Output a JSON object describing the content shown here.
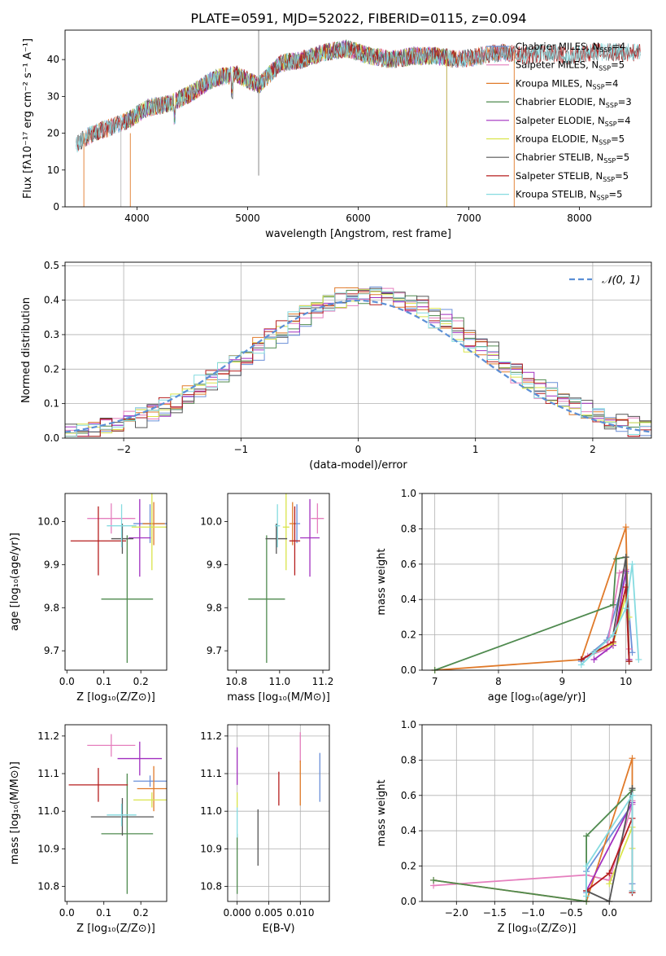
{
  "figure": {
    "title": "PLATE=0591, MJD=52022, FIBERID=0115, z=0.094"
  },
  "chart_data": [
    {
      "id": "spectrum",
      "type": "line",
      "xlabel": "wavelength [Angstrom, rest frame]",
      "ylabel": "Flux [fλ10⁻¹⁷ erg cm⁻² s⁻¹ A⁻¹]",
      "xlim": [
        3350,
        8650
      ],
      "ylim": [
        0,
        48
      ],
      "xticks": [
        4000,
        5000,
        6000,
        7000,
        8000
      ],
      "yticks": [
        0,
        10,
        20,
        30,
        40
      ],
      "grid": false,
      "legend": "top-right",
      "continuum": {
        "x": [
          3450,
          3600,
          3800,
          3950,
          4100,
          4300,
          4500,
          4700,
          4900,
          5100,
          5300,
          5500,
          5700,
          5900,
          6100,
          6300,
          6500,
          6700,
          6900,
          7100,
          7300,
          7500,
          7700,
          7900,
          8100,
          8300,
          8550
        ],
        "y": [
          17,
          20,
          22,
          24,
          27,
          28,
          31,
          35,
          36,
          33,
          39,
          40,
          42,
          43,
          41,
          40,
          41,
          41,
          40,
          41,
          42,
          41,
          42,
          41,
          42,
          42,
          42
        ]
      },
      "series": [
        {
          "name": "Chabrier MILES, Nₛₛₚ=4",
          "label": "Chabrier MILES, N",
          "sub": "SSP",
          "suffix": "=4",
          "color": "#6a8fd8",
          "xrange": [
            3540,
            7400
          ]
        },
        {
          "name": "Salpeter MILES, Nₛₛₚ=5",
          "label": "Salpeter MILES, N",
          "sub": "SSP",
          "suffix": "=5",
          "color": "#e57fbe",
          "xrange": [
            3540,
            7400
          ]
        },
        {
          "name": "Kroupa MILES, Nₛₛₚ=4",
          "label": "Kroupa MILES, N",
          "sub": "SSP",
          "suffix": "=4",
          "color": "#e07a2a",
          "xrange": [
            3540,
            7400
          ]
        },
        {
          "name": "Chabrier ELODIE, Nₛₛₚ=3",
          "label": "Chabrier ELODIE, N",
          "sub": "SSP",
          "suffix": "=3",
          "color": "#4f8a4f",
          "xrange": [
            3900,
            6800
          ]
        },
        {
          "name": "Salpeter ELODIE, Nₛₛₚ=4",
          "label": "Salpeter ELODIE, N",
          "sub": "SSP",
          "suffix": "=4",
          "color": "#a12fbf",
          "xrange": [
            3900,
            6800
          ]
        },
        {
          "name": "Kroupa ELODIE, Nₛₛₚ=5",
          "label": "Kroupa ELODIE, N",
          "sub": "SSP",
          "suffix": "=5",
          "color": "#d9e44a",
          "xrange": [
            3900,
            6800
          ]
        },
        {
          "name": "Chabrier STELIB, Nₛₛₚ=5",
          "label": "Chabrier STELIB, N",
          "sub": "SSP",
          "suffix": "=5",
          "color": "#555555",
          "xrange": [
            3450,
            8550
          ]
        },
        {
          "name": "Salpeter STELIB, Nₛₛₚ=5",
          "label": "Salpeter STELIB, N",
          "sub": "SSP",
          "suffix": "=5",
          "color": "#b51d1d",
          "xrange": [
            3450,
            8550
          ]
        },
        {
          "name": "Kroupa STELIB, Nₛₛₚ=5",
          "label": "Kroupa STELIB, N",
          "sub": "SSP",
          "suffix": "=5",
          "color": "#86dbe0",
          "xrange": [
            3450,
            8550
          ]
        }
      ]
    },
    {
      "id": "residuals",
      "type": "histogram",
      "xlabel": "(data-model)/error",
      "ylabel": "Normed distribution",
      "xlim": [
        -2.5,
        2.5
      ],
      "ylim": [
        0,
        0.51
      ],
      "xticks": [
        -2,
        -1,
        0,
        1,
        2
      ],
      "yticks": [
        0.0,
        0.1,
        0.2,
        0.3,
        0.4,
        0.5
      ],
      "grid": true,
      "legend": "top-right",
      "reference_label": "𝒩(0, 1)",
      "reference_color": "#5b8fd6"
    },
    {
      "id": "age_vs_Z",
      "type": "scatter",
      "xlabel": "Z [log₁₀(Z/Z⊙)]",
      "ylabel": "age  [log₁₀(age/yr)]",
      "xlim": [
        -0.005,
        0.27
      ],
      "ylim": [
        9.655,
        10.065
      ],
      "xticks": [
        0.0,
        0.1,
        0.2
      ],
      "yticks": [
        9.7,
        9.8,
        9.9,
        10.0
      ],
      "grid": false,
      "points": [
        {
          "x": 0.225,
          "y": 9.995,
          "xerr": 0.045,
          "yerr": 0.045,
          "color": "#6a8fd8"
        },
        {
          "x": 0.12,
          "y": 10.007,
          "xerr": 0.065,
          "yerr": 0.035,
          "color": "#e57fbe"
        },
        {
          "x": 0.235,
          "y": 9.995,
          "xerr": 0.03,
          "yerr": 0.05,
          "color": "#e07a2a"
        },
        {
          "x": 0.163,
          "y": 9.82,
          "xerr": 0.07,
          "yerr": 0.148,
          "color": "#4f8a4f"
        },
        {
          "x": 0.197,
          "y": 9.962,
          "xerr": 0.03,
          "yerr": 0.09,
          "color": "#a12fbf"
        },
        {
          "x": 0.23,
          "y": 9.987,
          "xerr": 0.055,
          "yerr": 0.1,
          "color": "#d9e44a"
        },
        {
          "x": 0.15,
          "y": 9.96,
          "xerr": 0.03,
          "yerr": 0.035,
          "color": "#555555"
        },
        {
          "x": 0.085,
          "y": 9.955,
          "xerr": 0.075,
          "yerr": 0.08,
          "color": "#b51d1d"
        },
        {
          "x": 0.148,
          "y": 9.99,
          "xerr": 0.04,
          "yerr": 0.05,
          "color": "#86dbe0"
        }
      ]
    },
    {
      "id": "age_vs_mass",
      "type": "scatter",
      "xlabel": "mass [log₁₀(M/M⊙)]",
      "ylabel": "",
      "xlim": [
        10.76,
        11.23
      ],
      "ylim": [
        9.655,
        10.065
      ],
      "xticks": [
        10.8,
        11.0,
        11.2
      ],
      "yticks": [
        9.7,
        9.8,
        9.9,
        10.0
      ],
      "grid": false,
      "points": [
        {
          "x": 11.08,
          "y": 9.995,
          "xerr": 0.015,
          "yerr": 0.045,
          "color": "#6a8fd8"
        },
        {
          "x": 11.175,
          "y": 10.007,
          "xerr": 0.03,
          "yerr": 0.035,
          "color": "#e57fbe"
        },
        {
          "x": 11.06,
          "y": 9.995,
          "xerr": 0.015,
          "yerr": 0.05,
          "color": "#e07a2a"
        },
        {
          "x": 10.94,
          "y": 9.82,
          "xerr": 0.085,
          "yerr": 0.148,
          "color": "#4f8a4f"
        },
        {
          "x": 11.14,
          "y": 9.962,
          "xerr": 0.045,
          "yerr": 0.09,
          "color": "#a12fbf"
        },
        {
          "x": 11.03,
          "y": 9.987,
          "xerr": 0.015,
          "yerr": 0.1,
          "color": "#d9e44a"
        },
        {
          "x": 10.985,
          "y": 9.96,
          "xerr": 0.05,
          "yerr": 0.035,
          "color": "#555555"
        },
        {
          "x": 11.07,
          "y": 9.955,
          "xerr": 0.025,
          "yerr": 0.08,
          "color": "#b51d1d"
        },
        {
          "x": 10.99,
          "y": 9.99,
          "xerr": 0.012,
          "yerr": 0.05,
          "color": "#86dbe0"
        }
      ]
    },
    {
      "id": "mass_weight_vs_age",
      "type": "line",
      "xlabel": "age  [log₁₀(age/yr)]",
      "ylabel": "mass weight",
      "xlim": [
        6.8,
        10.4
      ],
      "ylim": [
        0,
        1.0
      ],
      "xticks": [
        7,
        8,
        9,
        10
      ],
      "yticks": [
        0.0,
        0.2,
        0.4,
        0.6,
        0.8,
        1.0
      ],
      "grid": true,
      "series": [
        {
          "color": "#6a8fd8",
          "x": [
            9.3,
            9.7,
            10.0,
            10.1
          ],
          "y": [
            0.05,
            0.17,
            0.55,
            0.1
          ]
        },
        {
          "color": "#e57fbe",
          "x": [
            9.4,
            9.7,
            9.9,
            10.0,
            10.05
          ],
          "y": [
            0.08,
            0.12,
            0.55,
            0.57,
            0.12
          ]
        },
        {
          "color": "#e07a2a",
          "x": [
            7.0,
            9.3,
            10.0,
            10.05
          ],
          "y": [
            0.0,
            0.06,
            0.81,
            0.06
          ]
        },
        {
          "color": "#4f8a4f",
          "x": [
            7.0,
            9.8,
            9.85,
            10.0,
            10.05
          ],
          "y": [
            0.0,
            0.37,
            0.63,
            0.64,
            0.05
          ]
        },
        {
          "color": "#a12fbf",
          "x": [
            9.5,
            9.8,
            10.0,
            10.05
          ],
          "y": [
            0.06,
            0.14,
            0.56,
            0.06
          ]
        },
        {
          "color": "#d9e44a",
          "x": [
            9.5,
            9.8,
            10.0,
            10.05
          ],
          "y": [
            0.1,
            0.15,
            0.42,
            0.3
          ]
        },
        {
          "color": "#555555",
          "x": [
            9.3,
            9.5,
            9.8,
            10.0,
            10.05
          ],
          "y": [
            0.06,
            0.1,
            0.2,
            0.64,
            0.05
          ]
        },
        {
          "color": "#b51d1d",
          "x": [
            9.3,
            9.8,
            10.0,
            10.05
          ],
          "y": [
            0.06,
            0.16,
            0.47,
            0.05
          ]
        },
        {
          "color": "#86dbe0",
          "x": [
            9.3,
            9.5,
            9.8,
            10.0,
            10.1,
            10.2
          ],
          "y": [
            0.03,
            0.1,
            0.2,
            0.35,
            0.6,
            0.06
          ]
        }
      ]
    },
    {
      "id": "mass_vs_Z",
      "type": "scatter",
      "xlabel": "Z [log₁₀(Z/Z⊙)]",
      "ylabel": "mass [log₁₀(M/M⊙)]",
      "xlim": [
        -0.005,
        0.27
      ],
      "ylim": [
        10.76,
        11.23
      ],
      "xticks": [
        0.0,
        0.1,
        0.2
      ],
      "yticks": [
        10.8,
        10.9,
        11.0,
        11.1,
        11.2
      ],
      "grid": false,
      "points": [
        {
          "x": 0.225,
          "y": 11.08,
          "xerr": 0.045,
          "yerr": 0.015,
          "color": "#6a8fd8"
        },
        {
          "x": 0.12,
          "y": 11.175,
          "xerr": 0.065,
          "yerr": 0.03,
          "color": "#e57fbe"
        },
        {
          "x": 0.235,
          "y": 11.06,
          "xerr": 0.045,
          "yerr": 0.06,
          "color": "#e07a2a"
        },
        {
          "x": 0.163,
          "y": 10.94,
          "xerr": 0.07,
          "yerr": 0.16,
          "color": "#4f8a4f"
        },
        {
          "x": 0.197,
          "y": 11.14,
          "xerr": 0.06,
          "yerr": 0.045,
          "color": "#a12fbf"
        },
        {
          "x": 0.23,
          "y": 11.03,
          "xerr": 0.05,
          "yerr": 0.02,
          "color": "#d9e44a"
        },
        {
          "x": 0.15,
          "y": 10.985,
          "xerr": 0.085,
          "yerr": 0.05,
          "color": "#555555"
        },
        {
          "x": 0.085,
          "y": 11.07,
          "xerr": 0.08,
          "yerr": 0.045,
          "color": "#b51d1d"
        },
        {
          "x": 0.148,
          "y": 10.99,
          "xerr": 0.04,
          "yerr": 0.03,
          "color": "#86dbe0"
        }
      ]
    },
    {
      "id": "mass_vs_ebv",
      "type": "scatter",
      "xlabel": "E(B-V)",
      "ylabel": "",
      "xlim": [
        -0.0015,
        0.0146
      ],
      "ylim": [
        10.76,
        11.23
      ],
      "xticks": [
        0.0,
        0.005,
        0.01
      ],
      "yticks": [
        10.8,
        10.9,
        11.0,
        11.1,
        11.2
      ],
      "grid": true,
      "points": [
        {
          "x": 0.0131,
          "y": 11.09,
          "xerr": 0,
          "yerr": 0.065,
          "color": "#6a8fd8"
        },
        {
          "x": 0.01,
          "y": 11.17,
          "xerr": 0,
          "yerr": 0.04,
          "color": "#e57fbe"
        },
        {
          "x": 0.01,
          "y": 11.075,
          "xerr": 0,
          "yerr": 0.06,
          "color": "#e07a2a"
        },
        {
          "x": 0.0,
          "y": 10.86,
          "xerr": 0,
          "yerr": 0.08,
          "color": "#4f8a4f"
        },
        {
          "x": 0.0,
          "y": 11.12,
          "xerr": 0,
          "yerr": 0.05,
          "color": "#a12fbf"
        },
        {
          "x": 0.0,
          "y": 11.03,
          "xerr": 0,
          "yerr": 0.02,
          "color": "#d9e44a"
        },
        {
          "x": 0.0033,
          "y": 10.93,
          "xerr": 0,
          "yerr": 0.075,
          "color": "#555555"
        },
        {
          "x": 0.0066,
          "y": 11.06,
          "xerr": 0,
          "yerr": 0.045,
          "color": "#b51d1d"
        },
        {
          "x": 0.0,
          "y": 10.97,
          "xerr": 0,
          "yerr": 0.04,
          "color": "#86dbe0"
        }
      ]
    },
    {
      "id": "mass_weight_vs_Z",
      "type": "line",
      "xlabel": "Z [log₁₀(Z/Z⊙)]",
      "ylabel": "mass weight",
      "xlim": [
        -2.45,
        0.55
      ],
      "ylim": [
        0,
        1.0
      ],
      "xticks": [
        -2.0,
        -1.5,
        -1.0,
        -0.5,
        0.0
      ],
      "yticks": [
        0.0,
        0.2,
        0.4,
        0.6,
        0.8,
        1.0
      ],
      "grid": true,
      "series": [
        {
          "color": "#6a8fd8",
          "x": [
            -0.3,
            -0.3,
            0.3,
            0.3
          ],
          "y": [
            0.05,
            0.17,
            0.55,
            0.1
          ]
        },
        {
          "color": "#e57fbe",
          "x": [
            -2.3,
            -0.3,
            0.0,
            0.3,
            0.3
          ],
          "y": [
            0.09,
            0.15,
            0.12,
            0.55,
            0.57
          ]
        },
        {
          "color": "#e07a2a",
          "x": [
            -2.3,
            -0.3,
            0.3,
            0.3
          ],
          "y": [
            0.12,
            0.0,
            0.81,
            0.06
          ]
        },
        {
          "color": "#4f8a4f",
          "x": [
            -2.3,
            -0.3,
            -0.3,
            0.3,
            0.3
          ],
          "y": [
            0.12,
            0.0,
            0.37,
            0.63,
            0.64
          ]
        },
        {
          "color": "#a12fbf",
          "x": [
            -0.3,
            0.3,
            0.3
          ],
          "y": [
            0.06,
            0.56,
            0.06
          ]
        },
        {
          "color": "#d9e44a",
          "x": [
            0.0,
            0.3,
            0.3
          ],
          "y": [
            0.1,
            0.42,
            0.3
          ]
        },
        {
          "color": "#555555",
          "x": [
            -0.3,
            0.0,
            0.3,
            0.3
          ],
          "y": [
            0.06,
            0.0,
            0.64,
            0.05
          ]
        },
        {
          "color": "#b51d1d",
          "x": [
            -0.3,
            0.0,
            0.3,
            0.3
          ],
          "y": [
            0.06,
            0.16,
            0.47,
            0.05
          ]
        },
        {
          "color": "#86dbe0",
          "x": [
            -0.3,
            -0.3,
            0.3,
            0.3
          ],
          "y": [
            0.03,
            0.2,
            0.6,
            0.06
          ]
        }
      ]
    }
  ]
}
